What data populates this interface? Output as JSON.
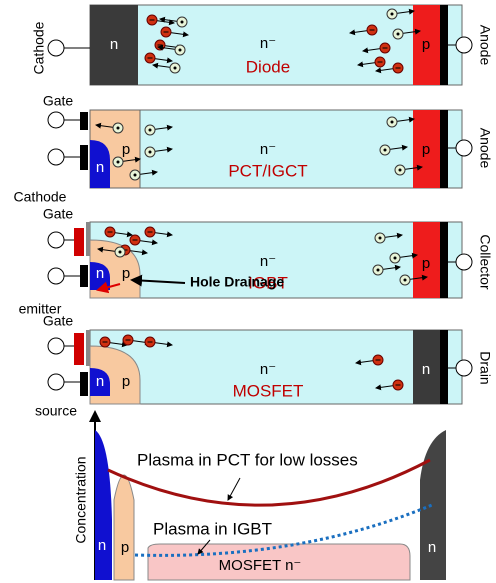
{
  "panels": [
    {
      "device": "Diode",
      "left_terminal": "Cathode",
      "right_terminal": "Anode",
      "left_region": "n",
      "drift": "n⁻",
      "right_region": "p"
    },
    {
      "device": "PCT/IGCT",
      "gate": "Gate",
      "left_terminal": "Cathode",
      "right_terminal": "Anode",
      "left_region": "n",
      "body": "p",
      "drift": "n⁻",
      "right_region": "p"
    },
    {
      "device": "IGBT",
      "gate": "Gate",
      "left_terminal": "emitter",
      "right_terminal": "Collector",
      "left_region": "n",
      "body": "p",
      "drift": "n⁻",
      "right_region": "p",
      "annotation": "Hole Drainage"
    },
    {
      "device": "MOSFET",
      "gate": "Gate",
      "left_terminal": "source",
      "right_terminal": "Drain",
      "left_region": "n",
      "body": "p",
      "drift": "n⁻",
      "right_region": "n"
    }
  ],
  "profile": {
    "y_axis": "Concentration",
    "pct_curve": "Plasma in PCT for low losses",
    "igbt_curve": "Plasma in IGBT",
    "regions": [
      "n",
      "p",
      "MOSFET n⁻",
      "n"
    ]
  }
}
